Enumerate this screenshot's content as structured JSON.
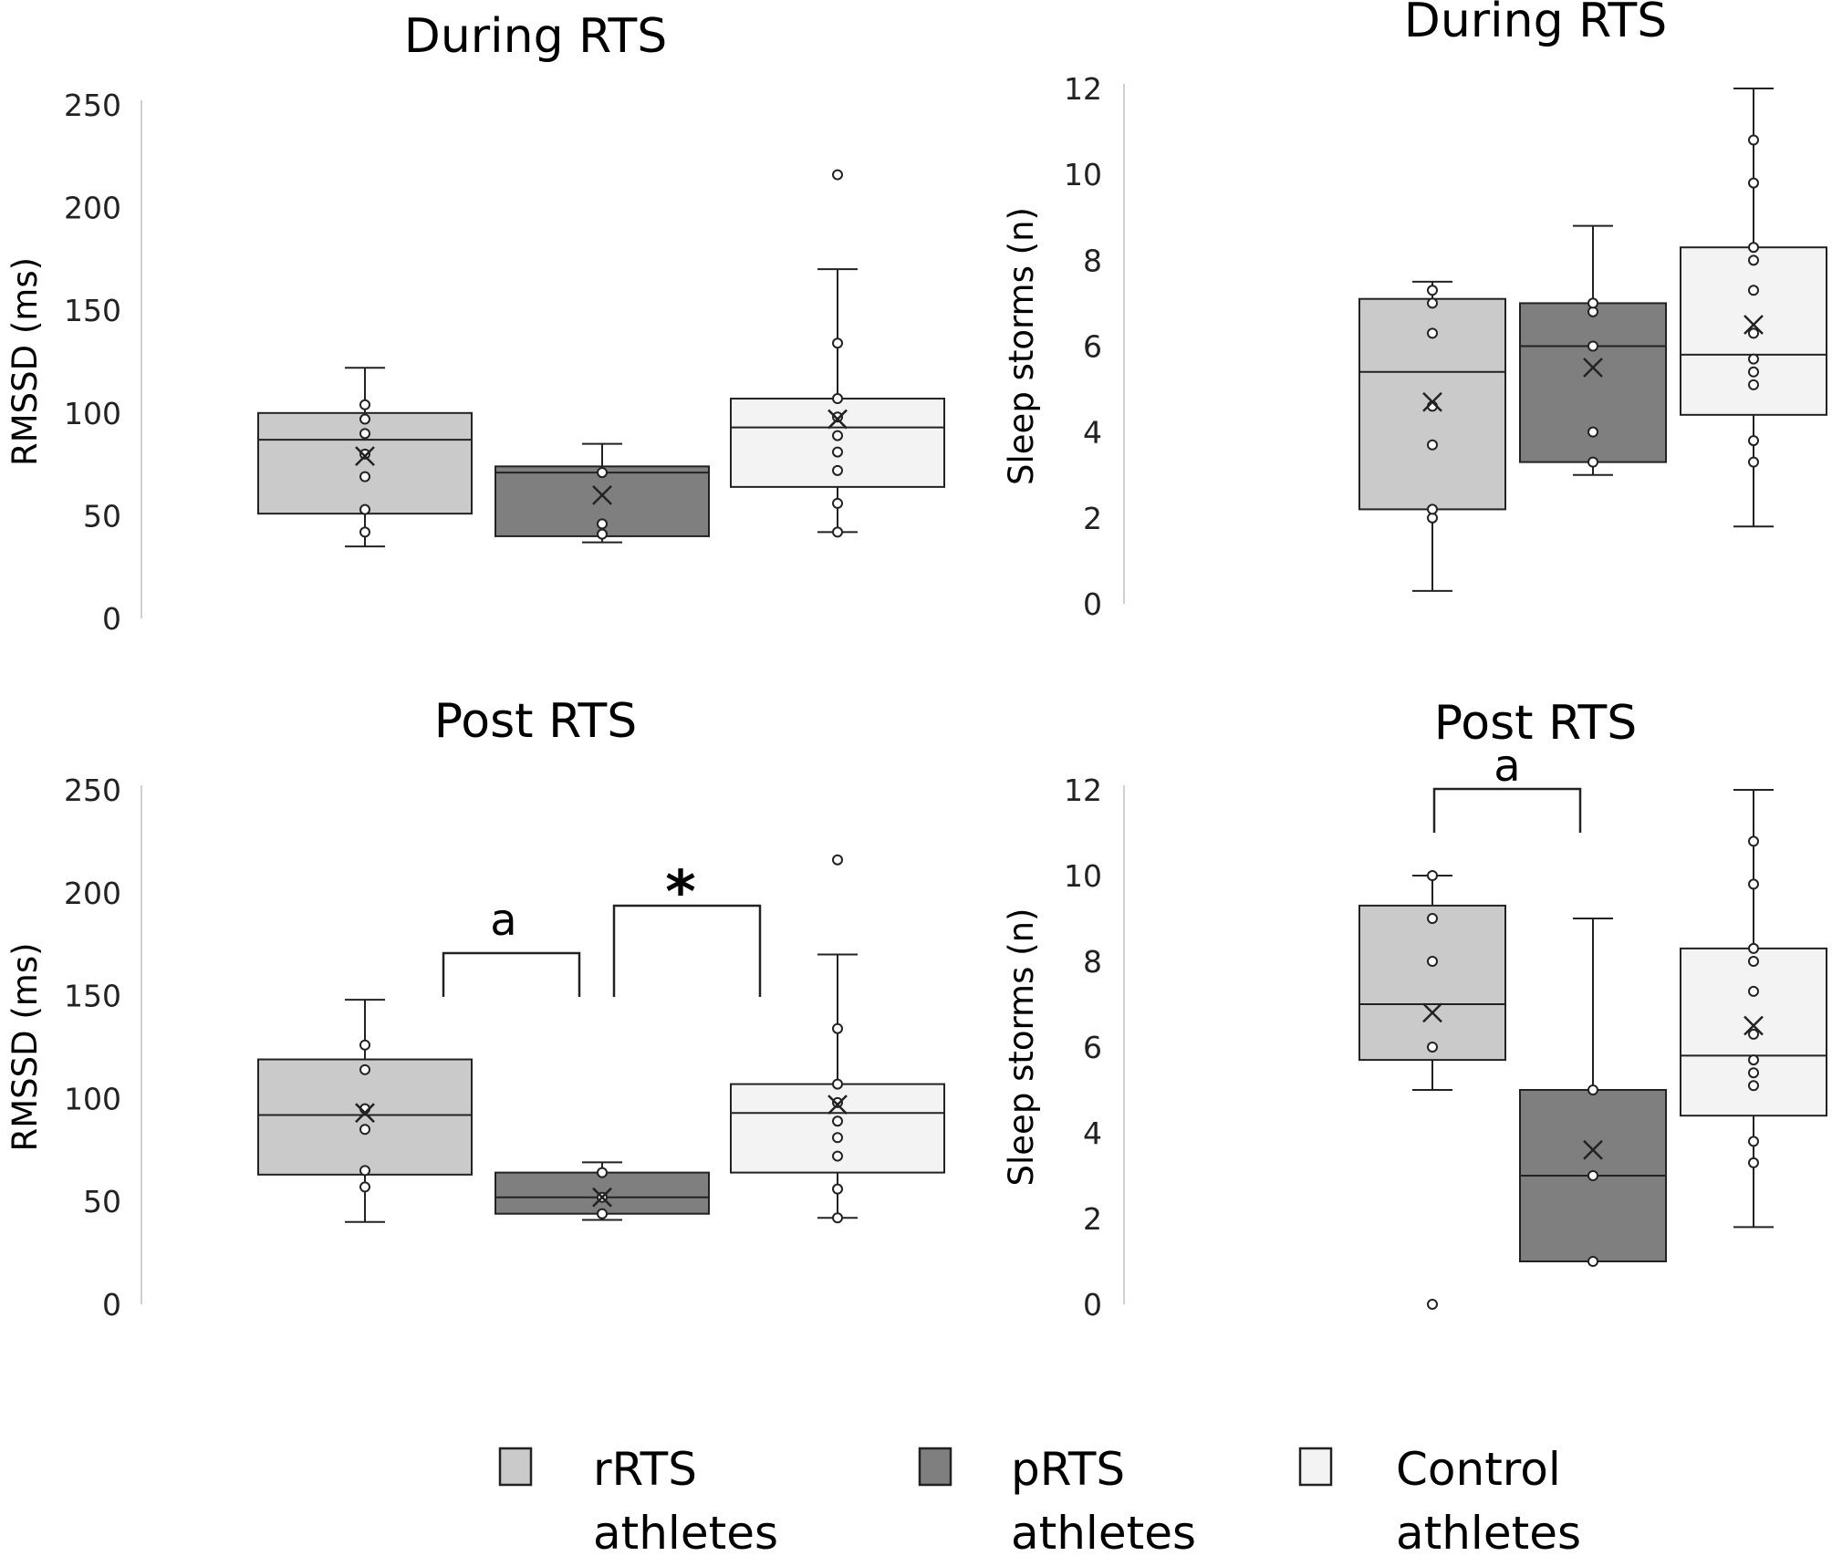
{
  "chart_data": [
    {
      "type": "boxplot",
      "title": "During RTS",
      "ylabel": "RMSSD (ms)",
      "ylim": [
        0,
        250
      ],
      "yticks": [
        0,
        50,
        100,
        150,
        200,
        250
      ],
      "ytick_labels": [
        "0",
        "50",
        "100",
        "150",
        "200",
        "250"
      ],
      "groups": [
        {
          "name": "rRTS athletes",
          "whisker_low": 35,
          "q1": 51,
          "median": 87,
          "q3": 100,
          "whisker_high": 122,
          "mean": 79,
          "points": [
            42,
            53,
            69,
            80,
            90,
            97,
            104
          ],
          "outliers": []
        },
        {
          "name": "pRTS athletes",
          "whisker_low": 37,
          "q1": 40,
          "median": 71,
          "q3": 74,
          "whisker_high": 85,
          "mean": 60,
          "points": [
            41,
            46,
            71
          ],
          "outliers": []
        },
        {
          "name": "Control athletes",
          "whisker_low": 42,
          "q1": 64,
          "median": 93,
          "q3": 107,
          "whisker_high": 170,
          "mean": 97,
          "points": [
            42,
            56,
            72,
            81,
            89,
            98,
            107,
            134
          ],
          "outliers": [
            216
          ]
        }
      ],
      "annotations": []
    },
    {
      "type": "boxplot",
      "title": "During RTS",
      "ylabel": "Sleep storms (n)",
      "ylim": [
        0,
        12
      ],
      "yticks": [
        0,
        2,
        4,
        6,
        8,
        10,
        12
      ],
      "ytick_labels": [
        "0",
        "2",
        "4",
        "6",
        "8",
        "10",
        "12"
      ],
      "groups": [
        {
          "name": "rRTS athletes",
          "whisker_low": 0.3,
          "q1": 2.2,
          "median": 5.4,
          "q3": 7.1,
          "whisker_high": 7.5,
          "mean": 4.7,
          "points": [
            2.0,
            2.2,
            3.7,
            4.6,
            6.3,
            7.0,
            7.3
          ],
          "outliers": []
        },
        {
          "name": "pRTS athletes",
          "whisker_low": 3.0,
          "q1": 3.3,
          "median": 6.0,
          "q3": 7.0,
          "whisker_high": 8.8,
          "mean": 5.5,
          "points": [
            3.3,
            4.0,
            6.0,
            6.8,
            7.0
          ],
          "outliers": []
        },
        {
          "name": "Control athletes",
          "whisker_low": 1.8,
          "q1": 4.4,
          "median": 5.8,
          "q3": 8.3,
          "whisker_high": 12.0,
          "mean": 6.5,
          "points": [
            3.3,
            3.8,
            5.1,
            5.4,
            5.7,
            6.3,
            7.3,
            8.0,
            8.3,
            9.8,
            10.8
          ],
          "outliers": []
        }
      ],
      "annotations": []
    },
    {
      "type": "boxplot",
      "title": "Post RTS",
      "ylabel": "RMSSD (ms)",
      "ylim": [
        0,
        250
      ],
      "yticks": [
        0,
        50,
        100,
        150,
        200,
        250
      ],
      "ytick_labels": [
        "0",
        "50",
        "100",
        "150",
        "200",
        "250"
      ],
      "groups": [
        {
          "name": "rRTS athletes",
          "whisker_low": 40,
          "q1": 63,
          "median": 92,
          "q3": 119,
          "whisker_high": 148,
          "mean": 93,
          "points": [
            57,
            65,
            85,
            95,
            114,
            126
          ],
          "outliers": []
        },
        {
          "name": "pRTS athletes",
          "whisker_low": 41,
          "q1": 44,
          "median": 52,
          "q3": 64,
          "whisker_high": 69,
          "mean": 52,
          "points": [
            44,
            52,
            64
          ],
          "outliers": []
        },
        {
          "name": "Control athletes",
          "whisker_low": 42,
          "q1": 64,
          "median": 93,
          "q3": 107,
          "whisker_high": 170,
          "mean": 97,
          "points": [
            42,
            56,
            72,
            81,
            89,
            98,
            107,
            134
          ],
          "outliers": [
            216
          ]
        }
      ],
      "annotations": [
        {
          "label": "a",
          "from_group": 0,
          "to_group": 1
        },
        {
          "label": "*",
          "from_group": 1,
          "to_group": 2
        }
      ]
    },
    {
      "type": "boxplot",
      "title": "Post RTS",
      "ylabel": "Sleep storms (n)",
      "ylim": [
        0,
        12
      ],
      "yticks": [
        0,
        2,
        4,
        6,
        8,
        10,
        12
      ],
      "ytick_labels": [
        "0",
        "2",
        "4",
        "6",
        "8",
        "10",
        "12"
      ],
      "groups": [
        {
          "name": "rRTS athletes",
          "whisker_low": 5.0,
          "q1": 5.7,
          "median": 7.0,
          "q3": 9.3,
          "whisker_high": 10.0,
          "mean": 6.8,
          "points": [
            6.0,
            8.0,
            9.0,
            10.0
          ],
          "outliers": [
            0
          ]
        },
        {
          "name": "pRTS athletes",
          "whisker_low": 1.0,
          "q1": 1.0,
          "median": 3.0,
          "q3": 5.0,
          "whisker_high": 9.0,
          "mean": 3.6,
          "points": [
            1.0,
            3.0,
            5.0
          ],
          "outliers": []
        },
        {
          "name": "Control athletes",
          "whisker_low": 1.8,
          "q1": 4.4,
          "median": 5.8,
          "q3": 8.3,
          "whisker_high": 12.0,
          "mean": 6.5,
          "points": [
            3.3,
            3.8,
            5.1,
            5.4,
            5.7,
            6.3,
            7.3,
            8.0,
            8.3,
            9.8,
            10.8
          ],
          "outliers": []
        }
      ],
      "annotations": [
        {
          "label": "a",
          "from_group": 0,
          "to_group": 1
        }
      ]
    }
  ],
  "legend": [
    {
      "line1": "rRTS",
      "line2": "athletes",
      "color": "#cacaca"
    },
    {
      "line1": "pRTS",
      "line2": "athletes",
      "color": "#7f7f7f"
    },
    {
      "line1": "Control",
      "line2": "athletes",
      "color": "#f3f3f3"
    }
  ],
  "colors": {
    "rRTS": "#cacaca",
    "pRTS": "#7f7f7f",
    "Control": "#f3f3f3",
    "stroke": "#222222"
  }
}
